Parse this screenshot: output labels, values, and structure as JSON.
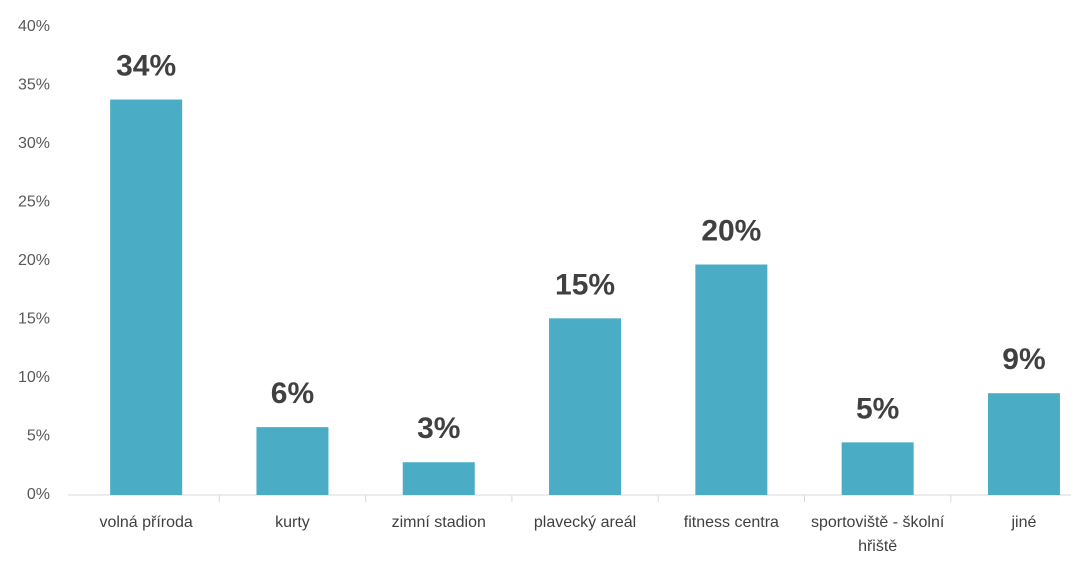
{
  "chart_data": {
    "type": "bar",
    "categories": [
      "volná příroda",
      "kurty",
      "zimní stadion",
      "plavecký areál",
      "fitness centra",
      "sportoviště - školní hřiště",
      "jiné"
    ],
    "values": [
      33.8,
      5.8,
      2.8,
      15.1,
      19.7,
      4.5,
      8.7
    ],
    "value_labels": [
      "34%",
      "6%",
      "3%",
      "15%",
      "20%",
      "5%",
      "9%"
    ],
    "color": "#4bacc6",
    "ylim": [
      0,
      40
    ],
    "yticks": [
      {
        "value": 0,
        "label": "0%"
      },
      {
        "value": 5,
        "label": "5%"
      },
      {
        "value": 10,
        "label": "10%"
      },
      {
        "value": 15,
        "label": "15%"
      },
      {
        "value": 20,
        "label": "20%"
      },
      {
        "value": 25,
        "label": "25%"
      },
      {
        "value": 30,
        "label": "30%"
      },
      {
        "value": 35,
        "label": "35%"
      },
      {
        "value": 40,
        "label": "40%"
      }
    ],
    "grid": false
  }
}
